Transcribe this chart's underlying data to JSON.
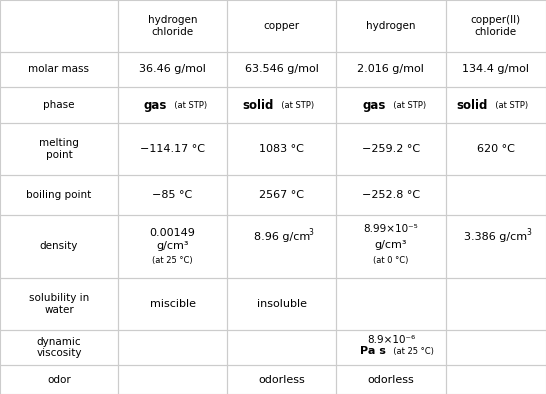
{
  "col_headers": [
    "hydrogen\nchloride",
    "copper",
    "hydrogen",
    "copper(II)\nchloride"
  ],
  "row_headers": [
    "molar mass",
    "phase",
    "melting\npoint",
    "boiling point",
    "density",
    "solubility in\nwater",
    "dynamic\nviscosity",
    "odor"
  ],
  "cells": [
    [
      "36.46 g/mol",
      "63.546 g/mol",
      "2.016 g/mol",
      "134.4 g/mol"
    ],
    [
      "phase_hcl",
      "phase_cu",
      "phase_h2",
      "phase_cus"
    ],
    [
      "mp_hcl",
      "1083 °C",
      "mp_h2",
      "620 °C"
    ],
    [
      "−85 °C",
      "2567 °C",
      "−252.8 °C",
      ""
    ],
    [
      "density_hcl",
      "density_cu",
      "density_h2",
      "density_cus"
    ],
    [
      "miscible",
      "insoluble",
      "",
      ""
    ],
    [
      "",
      "",
      "viscosity_h2",
      ""
    ],
    [
      "",
      "odorless",
      "odorless",
      ""
    ]
  ],
  "background_color": "#ffffff",
  "grid_color": "#cccccc",
  "text_color": "#000000",
  "header_bg": "#ffffff"
}
